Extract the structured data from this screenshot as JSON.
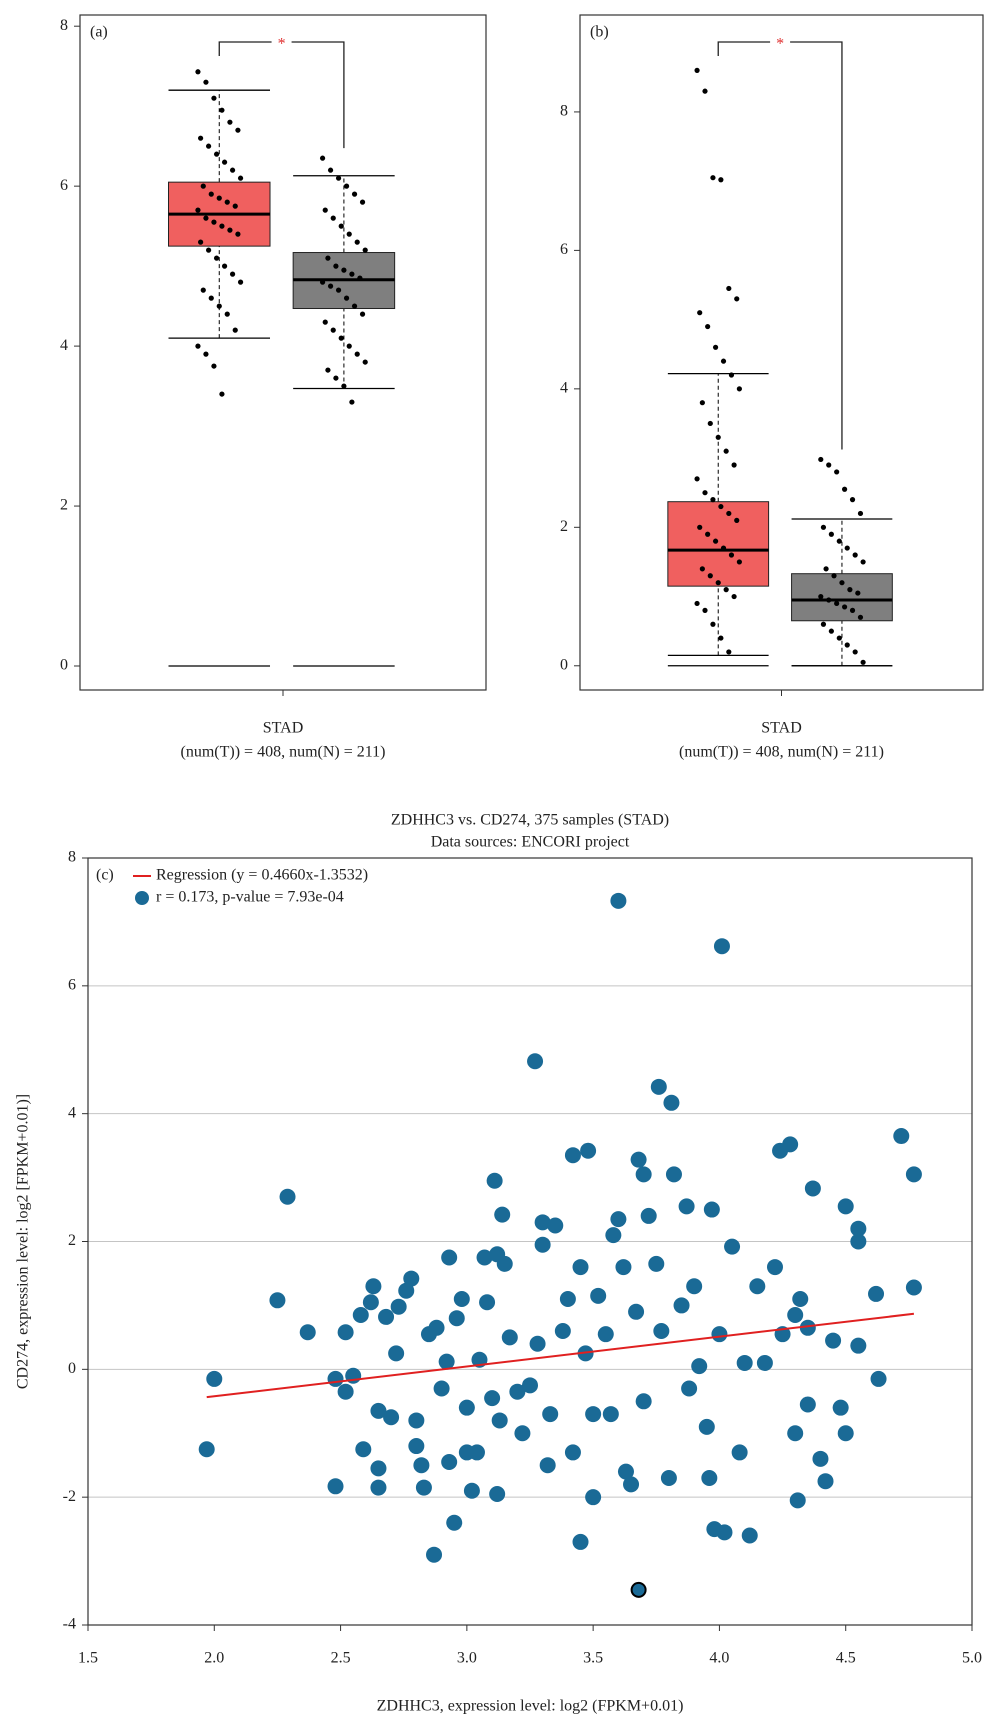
{
  "chart_data": [
    {
      "type": "box",
      "panel": "(a)",
      "categories": [
        "STAD"
      ],
      "xlabel": "(num(T)) = 408, num(N) = 211)",
      "annotation": "*",
      "ylim": [
        -0.3,
        8.14
      ],
      "yticks": [
        0,
        2,
        4,
        6,
        8
      ],
      "baseline": 0,
      "groups": [
        {
          "color": "#f0605f",
          "stats": {
            "whislo": 4.1,
            "q1": 5.25,
            "med": 5.65,
            "q3": 6.05,
            "whishi": 7.2
          },
          "points": [
            7.43,
            7.3,
            7.1,
            6.95,
            6.8,
            6.7,
            6.6,
            6.5,
            6.4,
            6.3,
            6.2,
            6.1,
            6.0,
            5.9,
            5.85,
            5.8,
            5.75,
            5.7,
            5.6,
            5.55,
            5.5,
            5.45,
            5.4,
            5.3,
            5.2,
            5.1,
            5.0,
            4.9,
            4.8,
            4.7,
            4.6,
            4.5,
            4.4,
            4.2,
            4.0,
            3.9,
            3.75,
            3.4
          ]
        },
        {
          "color": "#7f7f7f",
          "stats": {
            "whislo": 3.47,
            "q1": 4.47,
            "med": 4.83,
            "q3": 5.17,
            "whishi": 6.13
          },
          "points": [
            6.35,
            6.2,
            6.1,
            6.0,
            5.9,
            5.8,
            5.7,
            5.6,
            5.5,
            5.4,
            5.3,
            5.2,
            5.1,
            5.0,
            4.95,
            4.9,
            4.85,
            4.8,
            4.75,
            4.7,
            4.6,
            4.5,
            4.4,
            4.3,
            4.2,
            4.1,
            4.0,
            3.9,
            3.8,
            3.7,
            3.6,
            3.5,
            3.3
          ]
        }
      ]
    },
    {
      "type": "box",
      "panel": "(b)",
      "categories": [
        "STAD"
      ],
      "xlabel": "(num(T)) = 408, num(N) = 211)",
      "annotation": "*",
      "ylim": [
        -0.35,
        9.4
      ],
      "yticks": [
        0,
        2,
        4,
        6,
        8
      ],
      "baseline": 0,
      "groups": [
        {
          "color": "#f0605f",
          "stats": {
            "whislo": 0.15,
            "q1": 1.15,
            "med": 1.67,
            "q3": 2.37,
            "whishi": 4.22
          },
          "points": [
            8.6,
            8.3,
            7.05,
            7.02,
            5.45,
            5.3,
            5.1,
            4.9,
            4.6,
            4.4,
            4.2,
            4.0,
            3.8,
            3.5,
            3.3,
            3.1,
            2.9,
            2.7,
            2.5,
            2.4,
            2.3,
            2.2,
            2.1,
            2.0,
            1.9,
            1.8,
            1.7,
            1.6,
            1.5,
            1.4,
            1.3,
            1.2,
            1.1,
            1.0,
            0.9,
            0.8,
            0.6,
            0.4,
            0.2
          ]
        },
        {
          "color": "#7f7f7f",
          "stats": {
            "whislo": 0,
            "q1": 0.65,
            "med": 0.95,
            "q3": 1.33,
            "whishi": 2.12
          },
          "points": [
            2.98,
            2.9,
            2.8,
            2.55,
            2.4,
            2.2,
            2.0,
            1.9,
            1.8,
            1.7,
            1.6,
            1.5,
            1.4,
            1.3,
            1.2,
            1.1,
            1.05,
            1.0,
            0.95,
            0.9,
            0.85,
            0.8,
            0.7,
            0.6,
            0.5,
            0.4,
            0.3,
            0.2,
            0.05
          ]
        }
      ]
    },
    {
      "type": "scatter",
      "panel": "(c)",
      "title": "ZDHHC3 vs. CD274, 375 samples (STAD)",
      "subtitle": "Data sources: ENCORI project",
      "xlabel": "ZDHHC3, expression level: log2 (FPKM+0.01)",
      "ylabel": "CD274, expression level: log2 [FPKM+0.01)]",
      "xlim": [
        1.5,
        5.0
      ],
      "ylim": [
        -4,
        8
      ],
      "xticks": [
        1.5,
        {
          "value": 2,
          "label": "2.0"
        },
        2.5,
        {
          "value": 3,
          "label": "3.0"
        },
        3.5,
        {
          "value": 4,
          "label": "4.0"
        },
        4.5,
        {
          "value": 5,
          "label": "5.0"
        }
      ],
      "yticks": [
        -4,
        -2,
        0,
        2,
        4,
        6,
        8
      ],
      "grid": true,
      "color": "#1a6a96",
      "legend": [
        "Regression (y = 0.4660x-1.3532)",
        "r = 0.173, p-value = 7.93e-04"
      ],
      "regression": {
        "slope": 0.466,
        "intercept": -1.3532,
        "x": [
          1.97,
          4.77
        ],
        "color": "#e02020"
      },
      "highlight": {
        "x": 3.68,
        "y": -3.45
      },
      "x": [
        1.97,
        2.0,
        2.25,
        2.29,
        2.37,
        2.48,
        2.48,
        2.52,
        2.52,
        2.55,
        2.58,
        2.59,
        2.62,
        2.63,
        2.65,
        2.65,
        2.65,
        2.68,
        2.7,
        2.72,
        2.73,
        2.76,
        2.78,
        2.8,
        2.8,
        2.82,
        2.83,
        2.85,
        2.87,
        2.88,
        2.9,
        2.92,
        2.93,
        2.93,
        2.95,
        2.96,
        2.98,
        3.0,
        3.0,
        3.02,
        3.04,
        3.05,
        3.07,
        3.08,
        3.1,
        3.11,
        3.12,
        3.12,
        3.13,
        3.14,
        3.15,
        3.17,
        3.2,
        3.22,
        3.25,
        3.27,
        3.28,
        3.3,
        3.3,
        3.32,
        3.33,
        3.35,
        3.38,
        3.4,
        3.42,
        3.42,
        3.45,
        3.45,
        3.47,
        3.48,
        3.5,
        3.5,
        3.52,
        3.55,
        3.57,
        3.58,
        3.6,
        3.6,
        3.62,
        3.63,
        3.65,
        3.67,
        3.68,
        3.7,
        3.7,
        3.72,
        3.75,
        3.76,
        3.77,
        3.8,
        3.81,
        3.82,
        3.85,
        3.87,
        3.88,
        3.9,
        3.92,
        3.95,
        3.96,
        3.97,
        3.98,
        4.0,
        4.01,
        4.02,
        4.05,
        4.08,
        4.1,
        4.12,
        4.15,
        4.18,
        4.22,
        4.24,
        4.25,
        4.28,
        4.3,
        4.3,
        4.31,
        4.32,
        4.35,
        4.35,
        4.37,
        4.4,
        4.42,
        4.45,
        4.48,
        4.5,
        4.5,
        4.55,
        4.55,
        4.55,
        4.62,
        4.63,
        4.72,
        4.77,
        4.77
      ],
      "y": [
        -1.25,
        -0.15,
        1.08,
        2.7,
        0.58,
        -0.15,
        -1.83,
        0.58,
        -0.35,
        -0.1,
        0.85,
        -1.25,
        1.05,
        1.3,
        -1.85,
        -1.55,
        -0.65,
        0.82,
        -0.75,
        0.25,
        0.98,
        1.23,
        1.42,
        -0.8,
        -1.2,
        -1.5,
        -1.85,
        0.55,
        -2.9,
        0.65,
        -0.3,
        0.12,
        -1.45,
        1.75,
        -2.4,
        0.8,
        1.1,
        -1.3,
        -0.6,
        -1.9,
        -1.3,
        0.15,
        1.75,
        1.05,
        -0.45,
        2.95,
        1.8,
        -1.95,
        -0.8,
        2.42,
        1.65,
        0.5,
        -0.35,
        -1.0,
        -0.25,
        4.82,
        0.4,
        2.3,
        1.95,
        -1.5,
        -0.7,
        2.25,
        0.6,
        1.1,
        3.35,
        -1.3,
        1.6,
        -2.7,
        0.25,
        3.42,
        -0.7,
        -2.0,
        1.15,
        0.55,
        -0.7,
        2.1,
        7.33,
        2.35,
        1.6,
        -1.6,
        -1.8,
        0.9,
        3.28,
        3.05,
        -0.5,
        2.4,
        1.65,
        4.42,
        0.6,
        -1.7,
        4.17,
        3.05,
        1.0,
        2.55,
        -0.3,
        1.3,
        0.05,
        -0.9,
        -1.7,
        2.5,
        -2.5,
        0.55,
        6.62,
        -2.55,
        1.92,
        -1.3,
        0.1,
        -2.6,
        1.3,
        0.1,
        1.6,
        3.42,
        0.55,
        3.52,
        -1.0,
        0.85,
        -2.05,
        1.1,
        0.65,
        -0.55,
        2.83,
        -1.4,
        -1.75,
        0.45,
        -0.6,
        2.55,
        -1.0,
        2.2,
        2.0,
        0.37,
        1.18,
        -0.15,
        3.65,
        3.05,
        1.28
      ]
    }
  ]
}
